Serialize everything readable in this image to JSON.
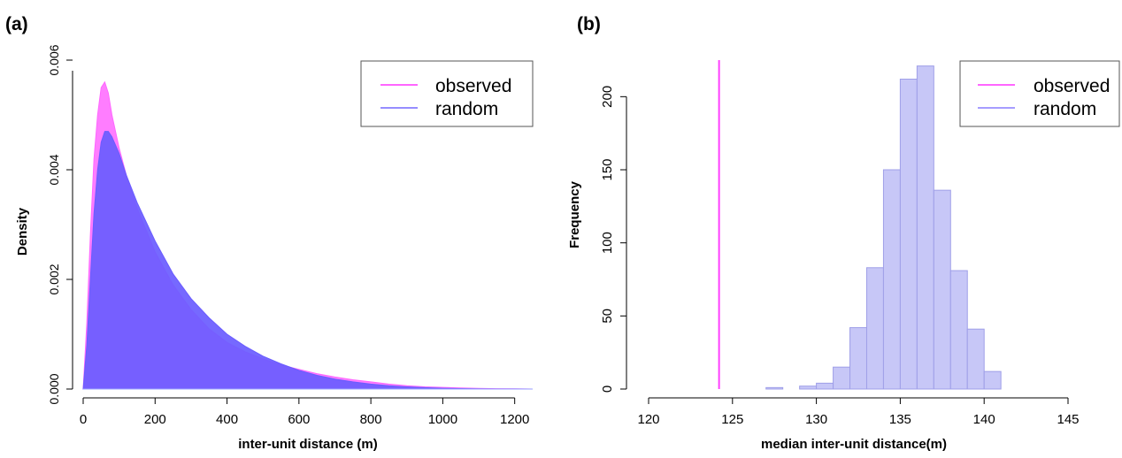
{
  "panels": {
    "a": {
      "label": "(a)"
    },
    "b": {
      "label": "(b)"
    }
  },
  "colors": {
    "observed": "#ff66ff",
    "random": "#6a5cff",
    "random_hist": "#c7c7f7",
    "random_hist_edge": "#9f9fe8",
    "observed_line": "#ff40ff",
    "axis": "#000000"
  },
  "chart_data": [
    {
      "type": "area",
      "panel": "(a)",
      "xlabel": "inter-unit distance (m)",
      "ylabel": "Density",
      "xlim": [
        0,
        1250
      ],
      "ylim": [
        0,
        0.006
      ],
      "xticks": [
        "0",
        "200",
        "400",
        "600",
        "800",
        "1000",
        "1200"
      ],
      "yticks": [
        "0.000",
        "0.002",
        "0.004",
        "0.006"
      ],
      "legend": {
        "position": "top-right",
        "entries": [
          "observed",
          "random"
        ]
      },
      "grid": false,
      "series": [
        {
          "name": "observed",
          "x": [
            0,
            10,
            20,
            30,
            40,
            50,
            60,
            70,
            80,
            100,
            120,
            150,
            200,
            250,
            300,
            350,
            400,
            450,
            500,
            550,
            600,
            650,
            700,
            750,
            800,
            850,
            900,
            950,
            1000,
            1050,
            1100,
            1150,
            1200,
            1250
          ],
          "y": [
            0,
            0.0012,
            0.0028,
            0.0042,
            0.005,
            0.0055,
            0.0056,
            0.0054,
            0.005,
            0.0044,
            0.0039,
            0.0033,
            0.0025,
            0.0019,
            0.00145,
            0.0011,
            0.00085,
            0.00068,
            0.00055,
            0.00044,
            0.00036,
            0.00028,
            0.00022,
            0.00017,
            0.00013,
            9e-05,
            6e-05,
            4e-05,
            3e-05,
            2e-05,
            1.2e-05,
            6e-06,
            3e-06,
            0
          ]
        },
        {
          "name": "random",
          "x": [
            0,
            10,
            20,
            30,
            40,
            50,
            60,
            70,
            80,
            100,
            120,
            150,
            200,
            250,
            300,
            350,
            400,
            450,
            500,
            550,
            600,
            650,
            700,
            750,
            800,
            850,
            900,
            950,
            1000,
            1050,
            1100,
            1150,
            1200,
            1250
          ],
          "y": [
            0,
            0.0008,
            0.002,
            0.0032,
            0.004,
            0.0045,
            0.0047,
            0.0047,
            0.0046,
            0.0043,
            0.0039,
            0.0034,
            0.0027,
            0.0021,
            0.00165,
            0.0013,
            0.001,
            0.00078,
            0.0006,
            0.00046,
            0.00034,
            0.00025,
            0.00018,
            0.00013,
            9e-05,
            6e-05,
            4e-05,
            2.5e-05,
            1.5e-05,
            8e-06,
            4e-06,
            2e-06,
            1e-06,
            0
          ]
        }
      ]
    },
    {
      "type": "bar",
      "panel": "(b)",
      "xlabel": "median inter-unit distance(m)",
      "ylabel": "Frequency",
      "xlim": [
        120,
        145
      ],
      "ylim": [
        0,
        225
      ],
      "xticks": [
        "120",
        "125",
        "130",
        "135",
        "140",
        "145"
      ],
      "yticks": [
        "0",
        "50",
        "100",
        "150",
        "200"
      ],
      "legend": {
        "position": "top-right",
        "entries": [
          "observed",
          "random"
        ]
      },
      "grid": false,
      "series": [
        {
          "name": "random",
          "bin_edges": [
            127,
            128,
            129,
            130,
            131,
            132,
            133,
            134,
            135,
            136,
            137,
            138,
            139,
            140,
            141
          ],
          "counts": [
            1,
            0,
            2,
            4,
            15,
            42,
            83,
            150,
            212,
            221,
            136,
            81,
            41,
            12
          ]
        },
        {
          "name": "observed",
          "vline": 124.2
        }
      ]
    }
  ]
}
